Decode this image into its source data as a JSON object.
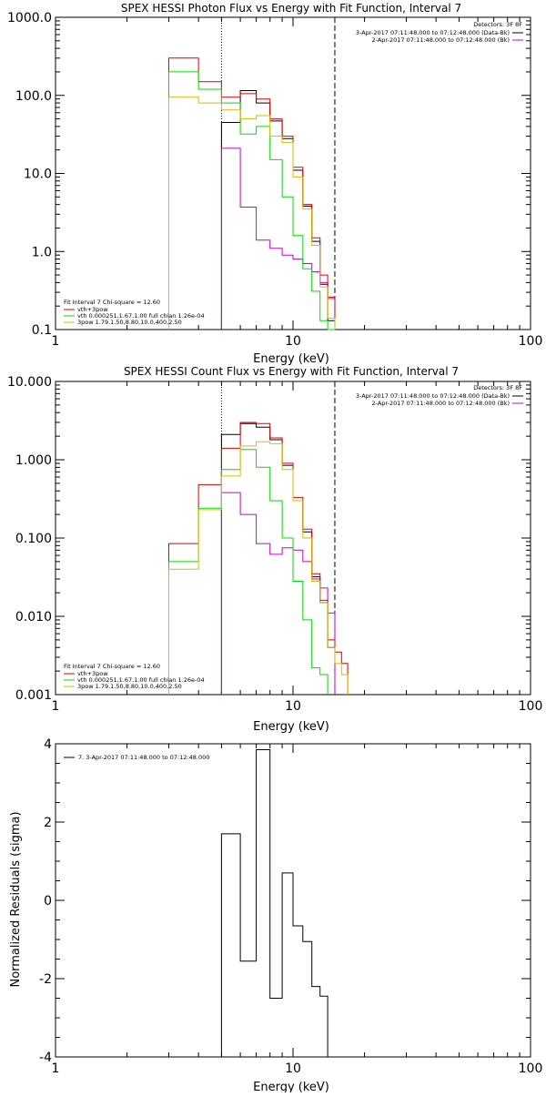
{
  "chart_data": [
    {
      "type": "line",
      "title": "SPEX HESSI Photon Flux vs Energy with Fit Function, Interval 7",
      "xlabel": "Energy (keV)",
      "ylabel": "",
      "xscale": "log",
      "yscale": "log",
      "xlim": [
        1,
        100
      ],
      "ylim": [
        0.1,
        1000
      ],
      "x_tick_labels": [
        "1",
        "10",
        "100"
      ],
      "y_tick_labels": [
        "0.1",
        "1.0",
        "10.0",
        "100.0",
        "1000.0"
      ],
      "x_tick_values": [
        1,
        10,
        100
      ],
      "y_tick_values": [
        0.1,
        1,
        10,
        100,
        1000
      ],
      "bin_edges": [
        3.0,
        4.0,
        5.0,
        6.0,
        7.0,
        8.0,
        9.0,
        10.0,
        11.0,
        12.0,
        13.0,
        14.0,
        15.0
      ],
      "vlines": [
        {
          "x": 5.0,
          "style": "dotted"
        },
        {
          "x": 15.0,
          "style": "dashed"
        }
      ],
      "data_legend": {
        "header": "Detectors: 3F 8F",
        "entries": [
          {
            "label": "3-Apr-2017 07:11:48.000 to 07:12:48.000 (Data-Bk)",
            "color": "#000000"
          },
          {
            "label": "2-Apr-2017 07:11:48.000 to 07:12:48.000 (Bk)",
            "color": "#cc00cc"
          }
        ],
        "position": "top-right"
      },
      "fit_legend": {
        "header": "Fit Interval 7   Chi-square = 12.60",
        "entries": [
          {
            "label": "vth+3pow",
            "color": "#dd0000"
          },
          {
            "label": "vth 0.000251,1.67,1.00  full chian 1.26e-04",
            "color": "#00dd00"
          },
          {
            "label": "3pow 1.79,1.50,8.80,10.0,400,2.50",
            "color": "#ddbb00"
          }
        ],
        "position": "bottom-left"
      },
      "series": [
        {
          "name": "3-Apr-2017 07:11:48.000 to 07:12:48.000 (Data-Bk)",
          "color": "#000000",
          "values": [
            null,
            null,
            45,
            115,
            80,
            47,
            28,
            11,
            3.8,
            1.35,
            0.38,
            0.13
          ]
        },
        {
          "name": "2-Apr-2017 07:11:48.000 to 07:12:48.000 (Bk)",
          "color": "#cc00cc",
          "values": [
            null,
            null,
            21,
            3.7,
            1.4,
            1.1,
            0.9,
            0.8,
            0.7,
            0.55,
            0.4,
            0.25
          ]
        },
        {
          "name": "vth+3pow",
          "color": "#dd0000",
          "values": [
            300,
            150,
            95,
            105,
            90,
            50,
            30,
            12,
            4,
            1.5,
            0.5,
            0.26
          ]
        },
        {
          "name": "vth 0.000251,1.67,1.00  full chian 1.26e-04",
          "color": "#00dd00",
          "values": [
            200,
            120,
            80,
            32,
            40,
            15,
            5,
            1.6,
            0.6,
            0.31,
            0.13,
            0.1
          ]
        },
        {
          "name": "3pow 1.79,1.50,8.80,10.0,400,2.50",
          "color": "#ddbb00",
          "values": [
            95,
            80,
            65,
            50,
            55,
            30,
            25,
            9,
            3.5,
            1.2,
            0.35,
            0.14
          ]
        }
      ]
    },
    {
      "type": "line",
      "title": "SPEX HESSI Count Flux vs Energy with Fit Function, Interval 7",
      "xlabel": "Energy (keV)",
      "ylabel": "",
      "xscale": "log",
      "yscale": "log",
      "xlim": [
        1,
        100
      ],
      "ylim": [
        0.001,
        10
      ],
      "x_tick_labels": [
        "1",
        "10",
        "100"
      ],
      "y_tick_labels": [
        "0.001",
        "0.010",
        "0.100",
        "1.000",
        "10.000"
      ],
      "x_tick_values": [
        1,
        10,
        100
      ],
      "y_tick_values": [
        0.001,
        0.01,
        0.1,
        1,
        10
      ],
      "bin_edges": [
        3.0,
        4.0,
        5.0,
        6.0,
        7.0,
        8.0,
        9.0,
        10.0,
        11.0,
        12.0,
        13.0,
        14.0,
        15.0,
        16.0,
        17.0,
        18.0
      ],
      "vlines": [
        {
          "x": 5.0,
          "style": "dotted"
        },
        {
          "x": 15.0,
          "style": "dashed"
        }
      ],
      "data_legend": {
        "header": "Detectors: 3F 8F",
        "entries": [
          {
            "label": "3-Apr-2017 07:11:48.000 to 07:12:48.000 (Data-Bk)",
            "color": "#000000"
          },
          {
            "label": "2-Apr-2017 07:11:48.000 to 07:12:48.000 (Bk)",
            "color": "#cc00cc"
          }
        ],
        "position": "top-right"
      },
      "fit_legend": {
        "header": "Fit Interval 7   Chi-square = 12.60",
        "entries": [
          {
            "label": "vth+3pow",
            "color": "#dd0000"
          },
          {
            "label": "vth 0.000251,1.67,1.00  full chian 1.26e-04",
            "color": "#00dd00"
          },
          {
            "label": "3pow 1.79,1.50,8.80,10.0,400,2.50",
            "color": "#ddbb00"
          }
        ],
        "position": "bottom-left"
      },
      "series": [
        {
          "name": "3-Apr-2017 07:11:48.000 to 07:12:48.000 (Data-Bk)",
          "color": "#000000",
          "values": [
            null,
            null,
            2.1,
            2.9,
            2.6,
            1.8,
            0.85,
            0.3,
            0.12,
            0.032,
            0.015,
            0.004,
            null,
            null,
            null
          ]
        },
        {
          "name": "2-Apr-2017 07:11:48.000 to 07:12:48.000 (Bk)",
          "color": "#cc00cc",
          "values": [
            null,
            null,
            0.38,
            0.2,
            0.085,
            0.062,
            0.075,
            0.07,
            0.05,
            0.03,
            0.023,
            0.011,
            null,
            null,
            null
          ]
        },
        {
          "name": "vth+3pow",
          "color": "#dd0000",
          "values": [
            0.085,
            0.48,
            1.4,
            3.0,
            2.9,
            1.9,
            0.9,
            0.33,
            0.13,
            0.035,
            0.016,
            0.005,
            0.0035,
            0.0025,
            null
          ]
        },
        {
          "name": "vth 0.000251,1.67,1.00  full chian 1.26e-04",
          "color": "#00dd00",
          "values": [
            0.05,
            0.24,
            0.75,
            1.35,
            0.8,
            0.3,
            0.1,
            0.028,
            0.009,
            0.0022,
            0.0018,
            null,
            null,
            null,
            null
          ]
        },
        {
          "name": "3pow 1.79,1.50,8.80,10.0,400,2.50",
          "color": "#ddbb00",
          "values": [
            0.04,
            0.23,
            0.62,
            1.5,
            1.7,
            1.6,
            0.75,
            0.3,
            0.1,
            0.028,
            0.015,
            0.004,
            0.0025,
            0.0018,
            null
          ]
        }
      ]
    },
    {
      "type": "line",
      "title": "",
      "xlabel": "Energy (keV)",
      "ylabel": "Normalized Residuals (sigma)",
      "xscale": "log",
      "yscale": "linear",
      "xlim": [
        1,
        100
      ],
      "ylim": [
        -4,
        4
      ],
      "x_tick_labels": [
        "1",
        "10",
        "100"
      ],
      "y_tick_labels": [
        "-4",
        "-2",
        "0",
        "2",
        "4"
      ],
      "x_tick_values": [
        1,
        10,
        100
      ],
      "y_tick_values": [
        -4,
        -2,
        0,
        2,
        4
      ],
      "bin_edges": [
        5.0,
        6.0,
        7.0,
        8.0,
        9.0,
        10.0,
        11.0,
        12.0,
        13.0,
        14.0,
        15.0
      ],
      "vlines": [],
      "data_legend": {
        "header": "",
        "entries": [
          {
            "label": "7.  3-Apr-2017 07:11:48.000 to 07:12:48.000",
            "color": "#000000"
          }
        ],
        "position": "top-left"
      },
      "fit_legend": null,
      "series": [
        {
          "name": "7.  3-Apr-2017 07:11:48.000 to 07:12:48.000",
          "color": "#000000",
          "values": [
            1.7,
            -1.55,
            3.85,
            -2.5,
            0.7,
            -0.65,
            -1.05,
            -2.2,
            -2.45,
            null
          ]
        }
      ]
    }
  ]
}
